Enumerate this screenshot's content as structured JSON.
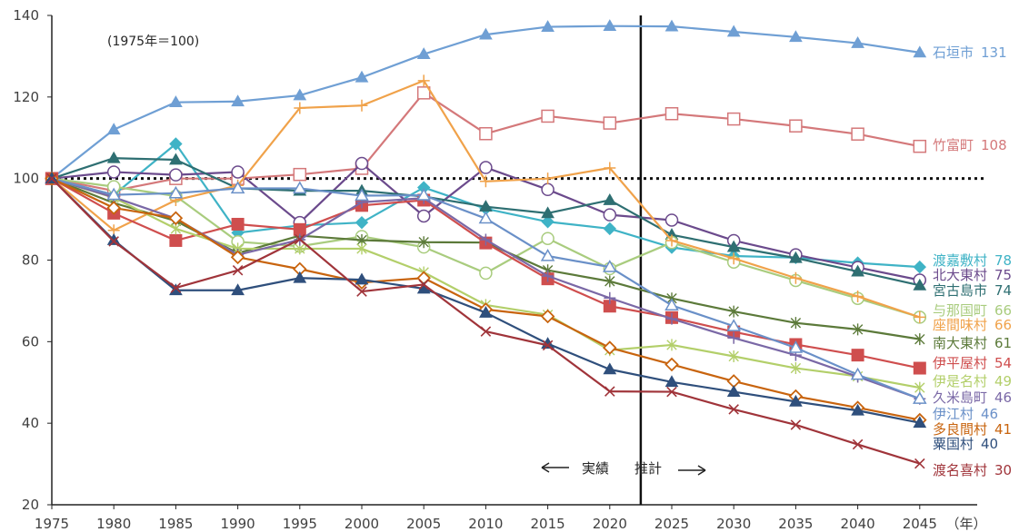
{
  "chart_data": {
    "type": "line",
    "note": "(1975年＝100)",
    "x_unit": "（年）",
    "x": [
      1975,
      1980,
      1985,
      1990,
      1995,
      2000,
      2005,
      2010,
      2015,
      2020,
      2025,
      2030,
      2035,
      2040,
      2045
    ],
    "ylim": [
      20,
      140
    ],
    "yticks": [
      20,
      40,
      60,
      80,
      100,
      120,
      140
    ],
    "grid": false,
    "reference_line": 100,
    "divider_between": [
      2020,
      2025
    ],
    "actual_label": "実績",
    "forecast_label": "推計",
    "series": [
      {
        "name": "石垣市",
        "label_value": "131",
        "color": "#6f9fd4",
        "marker": "triangle",
        "values": [
          100,
          112,
          118.7,
          118.9,
          120.4,
          124.8,
          130.5,
          135.3,
          137.2,
          137.4,
          137.3,
          136,
          134.7,
          133.2,
          130.9
        ]
      },
      {
        "name": "竹富町",
        "label_value": "108",
        "color": "#d4787a",
        "marker": "square-open",
        "values": [
          100,
          97,
          100,
          100,
          101,
          102.5,
          121,
          111,
          115.3,
          113.6,
          115.9,
          114.6,
          112.9,
          110.9,
          107.9
        ]
      },
      {
        "name": "渡嘉敷村",
        "label_value": "78",
        "color": "#3fb3c6",
        "marker": "diamond",
        "values": [
          100,
          96,
          108.5,
          86.7,
          88.5,
          89.2,
          97.8,
          92.6,
          89.4,
          87.7,
          83.1,
          81,
          80.6,
          79.3,
          78.3
        ]
      },
      {
        "name": "北大東村",
        "label_value": "75",
        "color": "#6b4a8c",
        "marker": "circle-open",
        "values": [
          100,
          101.6,
          100.9,
          101.6,
          89.2,
          103.7,
          90.8,
          102.7,
          97.3,
          91.1,
          89.8,
          84.8,
          81.3,
          78.2,
          75.1
        ]
      },
      {
        "name": "宮古島市",
        "label_value": "74",
        "color": "#2e6f72",
        "marker": "triangle",
        "values": [
          100,
          105,
          104.6,
          97.6,
          97,
          97,
          95.6,
          93.1,
          91.5,
          94.7,
          86.2,
          83.2,
          80.5,
          77.2,
          73.8
        ]
      },
      {
        "name": "与那国町",
        "label_value": "66",
        "color": "#a9cc7e",
        "marker": "circle-open",
        "values": [
          100,
          98,
          95.7,
          84.5,
          83.4,
          85.8,
          83.2,
          76.8,
          85.3,
          77.9,
          84.3,
          79.5,
          75,
          70.6,
          66
        ]
      },
      {
        "name": "座間味村",
        "label_value": "66",
        "color": "#f0a24a",
        "marker": "plus",
        "values": [
          100,
          87.3,
          94.7,
          98.3,
          117.3,
          117.9,
          124,
          99.3,
          100,
          102.6,
          84.8,
          80.4,
          75.6,
          71.1,
          66
        ]
      },
      {
        "name": "南大東村",
        "label_value": "61",
        "color": "#5c7a3a",
        "marker": "star",
        "values": [
          100,
          94,
          89.6,
          81.7,
          86,
          84.9,
          84.4,
          84.3,
          77.5,
          74.8,
          70.6,
          67.4,
          64.6,
          63,
          60.6
        ]
      },
      {
        "name": "伊平屋村",
        "label_value": "54",
        "color": "#cf4e4e",
        "marker": "square",
        "values": [
          100,
          91.5,
          84.8,
          88.8,
          87.5,
          93.4,
          94.7,
          84.2,
          75.4,
          68.7,
          65.9,
          62.4,
          59.3,
          56.7,
          53.5
        ]
      },
      {
        "name": "伊是名村",
        "label_value": "49",
        "color": "#b3cf6a",
        "marker": "star",
        "values": [
          100,
          95.3,
          87.7,
          82.8,
          82.8,
          82.8,
          77,
          69,
          66.6,
          57.9,
          59.2,
          56.4,
          53.5,
          51.5,
          48.7
        ]
      },
      {
        "name": "久米島町",
        "label_value": "46",
        "color": "#7a68a6",
        "marker": "plus",
        "values": [
          100,
          95.4,
          90.2,
          81.3,
          85,
          94.2,
          95.2,
          85,
          76.1,
          70.7,
          65.6,
          60.9,
          56.7,
          51.4,
          46
        ]
      },
      {
        "name": "伊江村",
        "label_value": "46",
        "color": "#6a90c8",
        "marker": "triangle-open",
        "values": [
          100,
          96,
          96.4,
          97.6,
          97.6,
          95.8,
          95.9,
          90.2,
          81,
          78.3,
          68.9,
          63.8,
          58.5,
          51.9,
          46
        ]
      },
      {
        "name": "多良間村",
        "label_value": "41",
        "color": "#c8640e",
        "marker": "diamond-open",
        "values": [
          100,
          92.8,
          90.3,
          80.7,
          77.8,
          74.5,
          75.6,
          67.9,
          66.2,
          58.5,
          54.4,
          50.3,
          46.6,
          43.8,
          40.8
        ]
      },
      {
        "name": "粟国村",
        "label_value": "40",
        "color": "#2f4f7c",
        "marker": "triangle",
        "values": [
          100,
          84.9,
          72.6,
          72.6,
          75.6,
          75.2,
          73,
          67.1,
          59.5,
          53.2,
          50.1,
          47.7,
          45.3,
          43.1,
          40.1
        ]
      },
      {
        "name": "渡名喜村",
        "label_value": "30",
        "color": "#a0343a",
        "marker": "x",
        "values": [
          100,
          84.6,
          73.2,
          77.5,
          85.1,
          72.3,
          74,
          62.5,
          59.1,
          47.8,
          47.7,
          43.4,
          39.6,
          34.8,
          30.1
        ]
      }
    ]
  }
}
